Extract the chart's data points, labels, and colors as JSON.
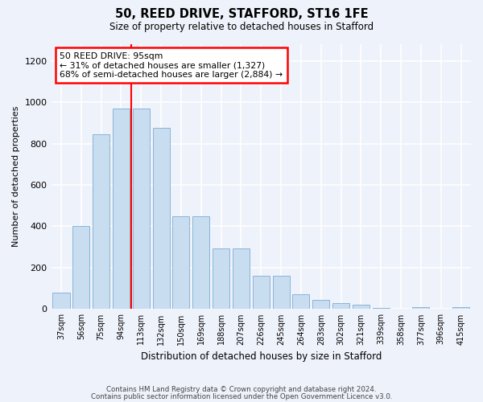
{
  "title": "50, REED DRIVE, STAFFORD, ST16 1FE",
  "subtitle": "Size of property relative to detached houses in Stafford",
  "xlabel": "Distribution of detached houses by size in Stafford",
  "ylabel": "Number of detached properties",
  "categories": [
    "37sqm",
    "56sqm",
    "75sqm",
    "94sqm",
    "113sqm",
    "132sqm",
    "150sqm",
    "169sqm",
    "188sqm",
    "207sqm",
    "226sqm",
    "245sqm",
    "264sqm",
    "283sqm",
    "302sqm",
    "321sqm",
    "339sqm",
    "358sqm",
    "377sqm",
    "396sqm",
    "415sqm"
  ],
  "values": [
    80,
    400,
    845,
    970,
    970,
    875,
    450,
    450,
    295,
    295,
    160,
    160,
    70,
    45,
    30,
    20,
    5,
    2,
    10,
    2,
    10
  ],
  "bar_color": "#c9ddf0",
  "bar_edge_color": "#8ab4d8",
  "red_line_x": 3.5,
  "annotation_text": "50 REED DRIVE: 95sqm\n← 31% of detached houses are smaller (1,327)\n68% of semi-detached houses are larger (2,884) →",
  "annotation_box_color": "white",
  "annotation_box_edge": "red",
  "red_line_color": "red",
  "ylim": [
    0,
    1280
  ],
  "yticks": [
    0,
    200,
    400,
    600,
    800,
    1000,
    1200
  ],
  "footer1": "Contains HM Land Registry data © Crown copyright and database right 2024.",
  "footer2": "Contains public sector information licensed under the Open Government Licence v3.0.",
  "bg_color": "#eef2fa",
  "grid_color": "white"
}
